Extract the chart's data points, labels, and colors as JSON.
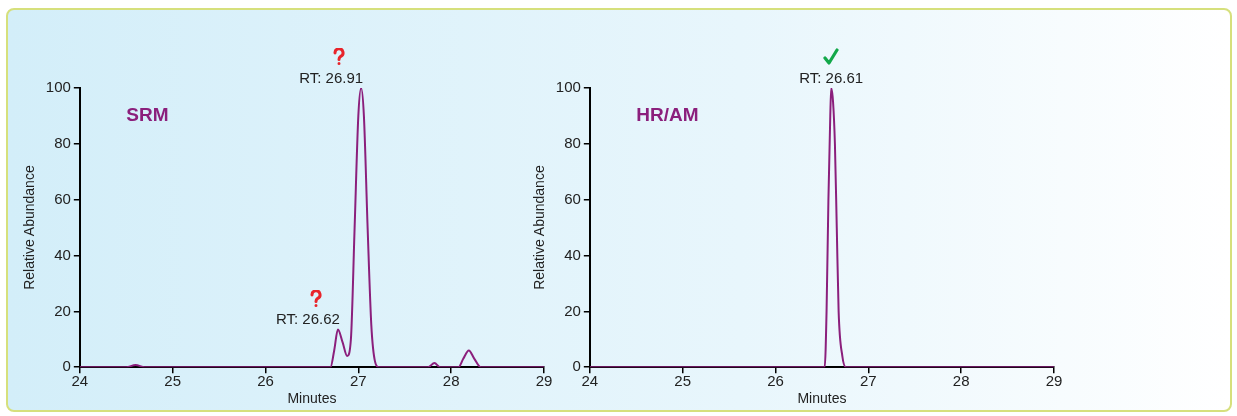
{
  "chart_data": [
    {
      "type": "line",
      "xlabel": "Minutes",
      "ylabel": "Relative Abundance",
      "xlim": [
        24,
        29
      ],
      "xticks": [
        24,
        25,
        26,
        27,
        28,
        29
      ],
      "ylim": [
        0,
        100
      ],
      "yticks": [
        0,
        20,
        40,
        60,
        80,
        100
      ],
      "grid": false,
      "marker": "none",
      "line_style": "solid",
      "series": [
        {
          "name": "SRM",
          "color": "#8b1f7c",
          "x": [
            24,
            24.5,
            24.6,
            24.7,
            26.7,
            26.74,
            26.78,
            26.83,
            26.88,
            26.92,
            26.96,
            27.0,
            27.03,
            27.06,
            27.1,
            27.14,
            27.18,
            27.22,
            27.75,
            27.82,
            27.88,
            28.08,
            28.13,
            28.19,
            28.25,
            28.32,
            29
          ],
          "values": [
            0,
            0,
            0.8,
            0,
            0,
            6,
            13.5,
            9,
            4,
            10,
            50,
            90,
            100,
            90,
            50,
            15,
            2,
            0,
            0,
            1.5,
            0,
            0,
            3,
            6,
            3,
            0,
            0
          ]
        }
      ],
      "annotations": [
        {
          "text": "RT: 26.91",
          "x": 27.03,
          "y": 100
        },
        {
          "text": "RT: 26.62",
          "x": 26.78,
          "y": 13.5
        }
      ]
    },
    {
      "type": "line",
      "xlabel": "Minutes",
      "ylabel": "Relative Abundance",
      "xlim": [
        24,
        29
      ],
      "xticks": [
        24,
        25,
        26,
        27,
        28,
        29
      ],
      "ylim": [
        0,
        100
      ],
      "yticks": [
        0,
        20,
        40,
        60,
        80,
        100
      ],
      "grid": false,
      "marker": "none",
      "line_style": "solid",
      "series": [
        {
          "name": "HR/AM",
          "color": "#8b1f7c",
          "x": [
            24,
            26.53,
            26.55,
            26.57,
            26.59,
            26.6,
            26.62,
            26.64,
            26.66,
            26.68,
            26.72,
            26.76,
            29
          ],
          "values": [
            0,
            0,
            20,
            60,
            90,
            100,
            95,
            80,
            50,
            20,
            4,
            0,
            0
          ]
        }
      ],
      "annotations": [
        {
          "text": "RT: 26.61",
          "x": 26.6,
          "y": 100
        }
      ]
    }
  ]
}
